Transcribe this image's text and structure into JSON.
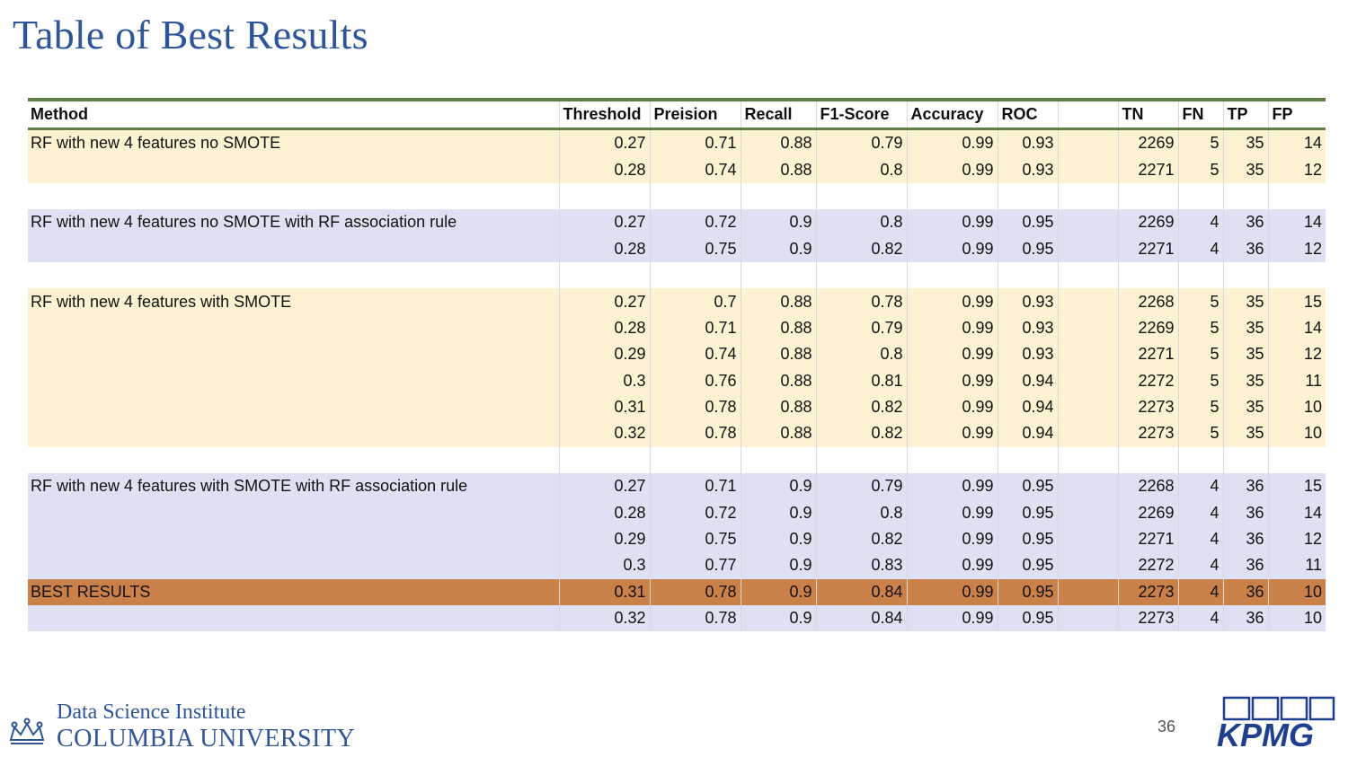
{
  "slide": {
    "title": "Table of Best Results",
    "page_number": "36"
  },
  "table": {
    "headers": [
      "Method",
      "Threshold",
      "Preision",
      "Recall",
      "F1-Score",
      "Accuracy",
      "ROC",
      "",
      "TN",
      "FN",
      "TP",
      "FP"
    ],
    "rows": [
      {
        "style": "yellow",
        "cells": [
          "RF with new 4 features no SMOTE",
          "0.27",
          "0.71",
          "0.88",
          "0.79",
          "0.99",
          "0.93",
          "",
          "2269",
          "5",
          "35",
          "14"
        ]
      },
      {
        "style": "yellow",
        "cells": [
          "",
          "0.28",
          "0.74",
          "0.88",
          "0.8",
          "0.99",
          "0.93",
          "",
          "2271",
          "5",
          "35",
          "12"
        ]
      },
      {
        "style": "blank",
        "cells": [
          "",
          "",
          "",
          "",
          "",
          "",
          "",
          "",
          "",
          "",
          "",
          ""
        ]
      },
      {
        "style": "blue",
        "cells": [
          "RF with new 4 features no SMOTE with RF association rule",
          "0.27",
          "0.72",
          "0.9",
          "0.8",
          "0.99",
          "0.95",
          "",
          "2269",
          "4",
          "36",
          "14"
        ]
      },
      {
        "style": "blue",
        "cells": [
          "",
          "0.28",
          "0.75",
          "0.9",
          "0.82",
          "0.99",
          "0.95",
          "",
          "2271",
          "4",
          "36",
          "12"
        ]
      },
      {
        "style": "blank",
        "cells": [
          "",
          "",
          "",
          "",
          "",
          "",
          "",
          "",
          "",
          "",
          "",
          ""
        ]
      },
      {
        "style": "yellow",
        "cells": [
          "RF with new 4 features with SMOTE",
          "0.27",
          "0.7",
          "0.88",
          "0.78",
          "0.99",
          "0.93",
          "",
          "2268",
          "5",
          "35",
          "15"
        ]
      },
      {
        "style": "yellow",
        "cells": [
          "",
          "0.28",
          "0.71",
          "0.88",
          "0.79",
          "0.99",
          "0.93",
          "",
          "2269",
          "5",
          "35",
          "14"
        ]
      },
      {
        "style": "yellow",
        "cells": [
          "",
          "0.29",
          "0.74",
          "0.88",
          "0.8",
          "0.99",
          "0.93",
          "",
          "2271",
          "5",
          "35",
          "12"
        ]
      },
      {
        "style": "yellow",
        "cells": [
          "",
          "0.3",
          "0.76",
          "0.88",
          "0.81",
          "0.99",
          "0.94",
          "",
          "2272",
          "5",
          "35",
          "11"
        ]
      },
      {
        "style": "yellow",
        "cells": [
          "",
          "0.31",
          "0.78",
          "0.88",
          "0.82",
          "0.99",
          "0.94",
          "",
          "2273",
          "5",
          "35",
          "10"
        ]
      },
      {
        "style": "yellow",
        "cells": [
          "",
          "0.32",
          "0.78",
          "0.88",
          "0.82",
          "0.99",
          "0.94",
          "",
          "2273",
          "5",
          "35",
          "10"
        ]
      },
      {
        "style": "blank",
        "cells": [
          "",
          "",
          "",
          "",
          "",
          "",
          "",
          "",
          "",
          "",
          "",
          ""
        ]
      },
      {
        "style": "blue",
        "cells": [
          "RF with new 4 features with SMOTE with RF association rule",
          "0.27",
          "0.71",
          "0.9",
          "0.79",
          "0.99",
          "0.95",
          "",
          "2268",
          "4",
          "36",
          "15"
        ]
      },
      {
        "style": "blue",
        "cells": [
          "",
          "0.28",
          "0.72",
          "0.9",
          "0.8",
          "0.99",
          "0.95",
          "",
          "2269",
          "4",
          "36",
          "14"
        ]
      },
      {
        "style": "blue",
        "cells": [
          "",
          "0.29",
          "0.75",
          "0.9",
          "0.82",
          "0.99",
          "0.95",
          "",
          "2271",
          "4",
          "36",
          "12"
        ]
      },
      {
        "style": "blue",
        "cells": [
          "",
          "0.3",
          "0.77",
          "0.9",
          "0.83",
          "0.99",
          "0.95",
          "",
          "2272",
          "4",
          "36",
          "11"
        ]
      },
      {
        "style": "best",
        "cells": [
          "BEST RESULTS",
          "0.31",
          "0.78",
          "0.9",
          "0.84",
          "0.99",
          "0.95",
          "",
          "2273",
          "4",
          "36",
          "10"
        ]
      },
      {
        "style": "blue",
        "cells": [
          "",
          "0.32",
          "0.78",
          "0.9",
          "0.84",
          "0.99",
          "0.95",
          "",
          "2273",
          "4",
          "36",
          "10"
        ]
      }
    ]
  },
  "footer": {
    "institute_line1": "Data Science Institute",
    "institute_line2": "COLUMBIA UNIVERSITY",
    "crown_icon": "crown-icon",
    "partner_logo_text": "KPMG"
  },
  "colors": {
    "title": "#2d5597",
    "header_rule": "#5f7f45",
    "yellow_band": "#fcf2d2",
    "blue_band": "#dde1f2",
    "best_row": "#c98149",
    "kpmg_blue": "#1f3f8f"
  }
}
